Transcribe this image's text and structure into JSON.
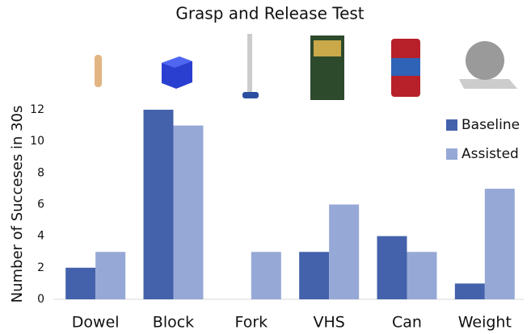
{
  "chart_data": {
    "type": "bar",
    "title": "Grasp and Release Test",
    "y_label": "Number of Succeses in 30s",
    "categories": [
      "Dowel",
      "Block",
      "Fork",
      "VHS",
      "Can",
      "Weight"
    ],
    "series": [
      {
        "name": "Baseline",
        "color": "#4462ab",
        "values": [
          2,
          12,
          0,
          3,
          4,
          1
        ]
      },
      {
        "name": "Assisted",
        "color": "#96a8d6",
        "values": [
          3,
          11,
          3,
          6,
          3,
          7
        ]
      }
    ],
    "ylim": [
      0,
      12
    ],
    "yticks": [
      0,
      2,
      4,
      6,
      8,
      10,
      12
    ],
    "grid": false,
    "legend": "top-right"
  }
}
